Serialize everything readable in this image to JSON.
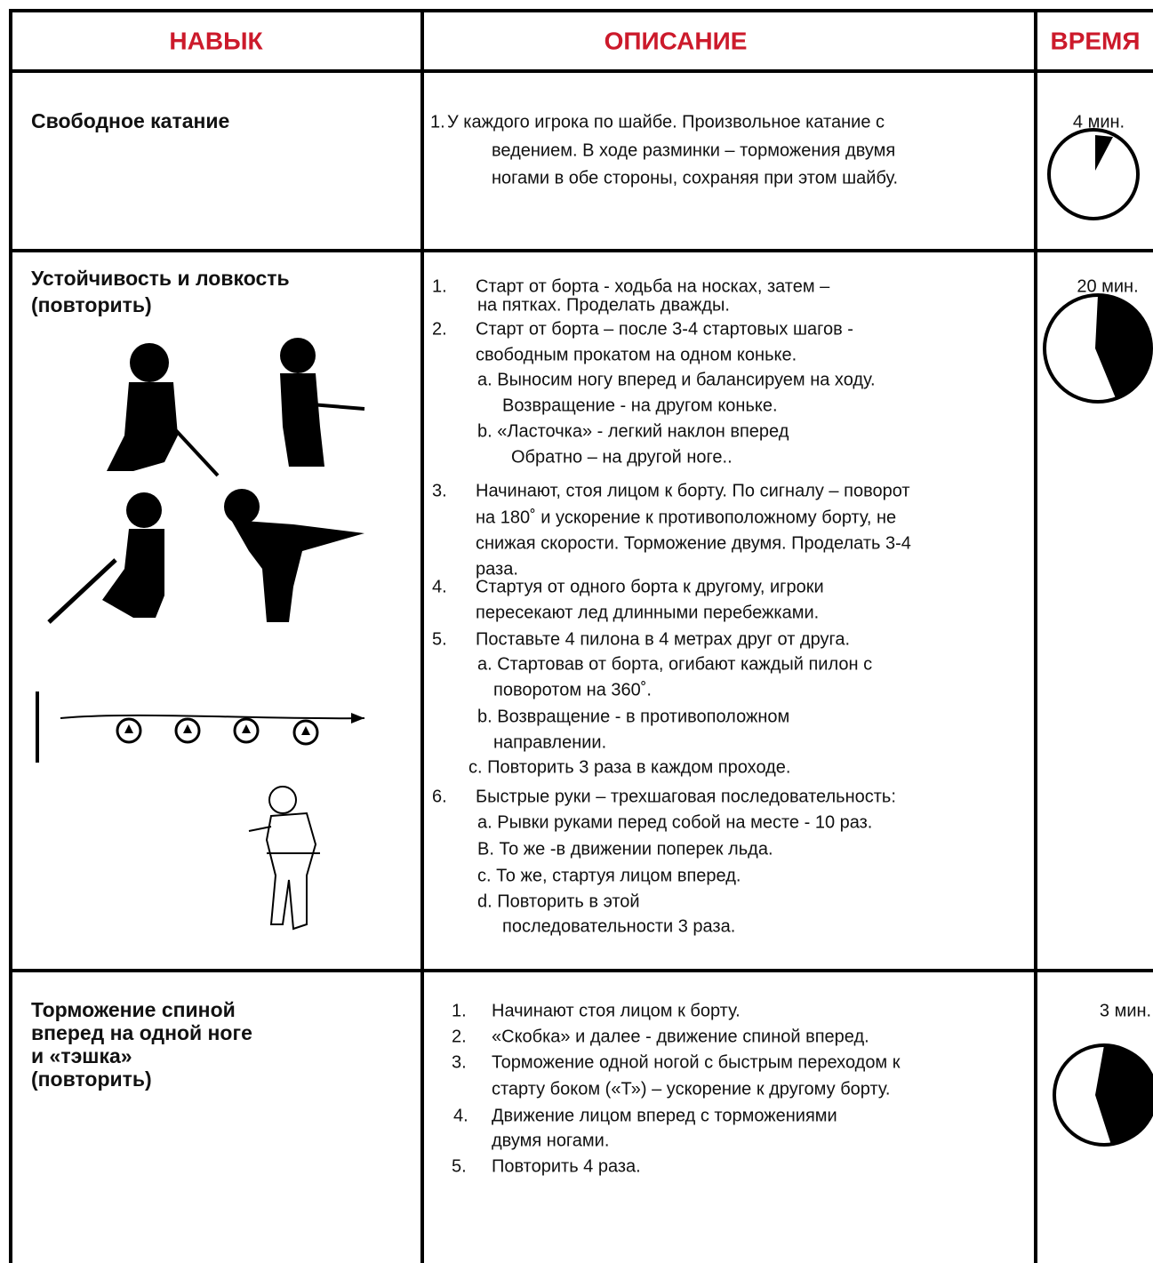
{
  "header": {
    "skill": "НАВЫК",
    "description": "ОПИСАНИЕ",
    "time": "ВРЕМЯ"
  },
  "rows": [
    {
      "skill": [
        "Свободное катание"
      ],
      "description": [
        {
          "num": "1.",
          "text": "У каждого игрока по шайбе. Произвольное катание с"
        },
        {
          "text": "ведением. В ходе разминки – торможения  двумя"
        },
        {
          "text": "ногами в обе стороны, сохраняя при этом шайбу."
        }
      ],
      "time": "4 мин."
    },
    {
      "skill": [
        "Устойчивость и ловкость",
        "(повторить)"
      ],
      "description": [
        {
          "num": "1.",
          "text": "Старт от борта - ходьба на носках, затем –"
        },
        {
          "text": "на пятках. Проделать дважды."
        },
        {
          "num": "2.",
          "text": "Старт от борта – после 3-4 стартовых шагов  -"
        },
        {
          "text": "свободным прокатом на одном коньке."
        },
        {
          "text": "a. Выносим ногу вперед и балансируем на ходу."
        },
        {
          "text": "Возвращение  - на другом коньке."
        },
        {
          "text": "b. «Ласточка» - легкий наклон вперед"
        },
        {
          "text": "Обратно – на другой ноге.."
        },
        {
          "num": "3.",
          "text": "Начинают, стоя лицом к борту. По сигналу – поворот"
        },
        {
          "text": "на 180˚ и ускорение к противоположному борту, не"
        },
        {
          "text": "снижая скорости. Торможение двумя. Проделать 3-4"
        },
        {
          "text": "раза."
        },
        {
          "num": "4.",
          "text": "Стартуя от одного борта к другому, игроки"
        },
        {
          "text": "пересекают лед длинными перебежками."
        },
        {
          "num": "5.",
          "text": "Поставьте 4 пилона в 4 метрах друг от друга."
        },
        {
          "text": "a. Стартовав от борта, огибают каждый пилон с"
        },
        {
          "text": "поворотом на 360˚."
        },
        {
          "text": "b. Возвращение - в противоположном"
        },
        {
          "text": "направлении."
        },
        {
          "text": "c. Повторить 3 раза в каждом проходе."
        },
        {
          "num": "6.",
          "text": "Быстрые руки – трехшаговая последовательность:"
        },
        {
          "text": "a. Рывки  руками  перед собой на месте - 10 раз."
        },
        {
          "text": "B. То же -в движении поперек льда."
        },
        {
          "text": "c. То же, стартуя лицом вперед."
        },
        {
          "text": "d. Повторить в этой"
        },
        {
          "text": "последовательности 3 раза."
        }
      ],
      "time": "20 мин."
    },
    {
      "skill": [
        "Торможение спиной",
        "вперед на одной ноге",
        "и «тэшка»",
        "(повторить)"
      ],
      "description": [
        {
          "num": "1.",
          "text": "Начинают стоя лицом к борту."
        },
        {
          "num": "2.",
          "text": "«Скобка» и далее - движение спиной вперед."
        },
        {
          "num": "3.",
          "text": "Торможение одной ногой с быстрым переходом к"
        },
        {
          "text": "старту боком («Т») – ускорение к другому борту."
        },
        {
          "num": "4.",
          "text": "Движение лицом вперед с торможениями"
        },
        {
          "text": "двумя ногами."
        },
        {
          "num": "5.",
          "text": "Повторить 4 раза."
        }
      ],
      "time": "3 мин."
    }
  ]
}
